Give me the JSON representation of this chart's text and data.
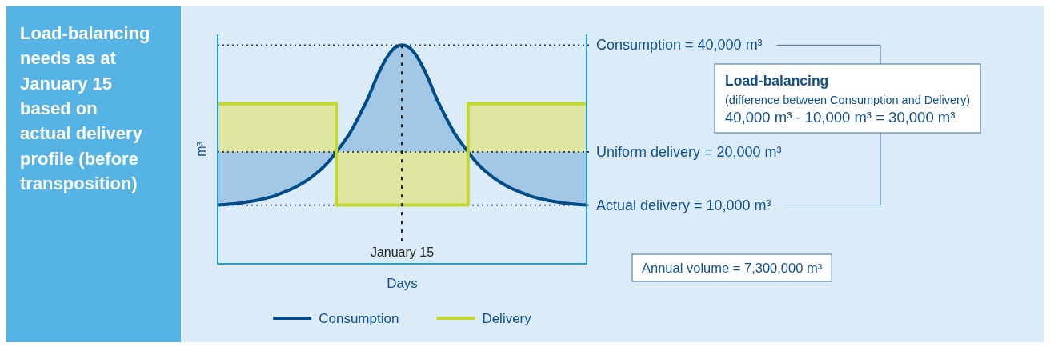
{
  "chart_data": {
    "type": "line",
    "title": "Load-balancing needs as at January 15 based on actual delivery profile (before transposition)",
    "xlabel": "Days",
    "legend": "bottom",
    "grid": "y",
    "ylim": [
      -1000,
      42000
    ],
    "yticks": [
      {
        "value": 40000,
        "label": "Consumption = 40,000 m³"
      },
      {
        "value": 20000,
        "label": "Uniform delivery = 20,000 m³"
      },
      {
        "value": 10000,
        "label": "Actual delivery = 10,000 m³"
      }
    ],
    "categories": [
      null,
      null,
      null,
      null,
      null,
      null,
      null,
      null,
      null,
      null,
      null,
      null,
      null,
      null,
      null,
      null,
      null,
      null,
      null,
      null,
      null,
      null,
      null,
      null,
      null,
      null,
      null,
      null,
      null,
      null,
      null,
      null,
      null,
      null,
      null,
      null,
      null,
      null,
      null,
      null,
      null,
      null,
      null,
      null,
      null,
      null,
      null,
      null,
      null,
      null,
      null,
      null,
      null,
      null,
      null,
      null,
      null
    ],
    "series": [
      {
        "name": "Consumption",
        "type": "line",
        "color": "#004c89",
        "values": [
          10000,
          10100,
          10200,
          10300,
          10500,
          10700,
          10900,
          11200,
          11500,
          11900,
          12400,
          12900,
          13500,
          14200,
          15000,
          16000,
          17100,
          18400,
          20000,
          21600,
          23400,
          25600,
          28000,
          30600,
          33600,
          36200,
          38300,
          39600,
          40000,
          39600,
          38300,
          36200,
          33600,
          30600,
          28000,
          25600,
          23400,
          21600,
          20000,
          18400,
          17100,
          16000,
          15000,
          14200,
          13500,
          12900,
          12400,
          11900,
          11500,
          11200,
          10900,
          10700,
          10500,
          10300,
          10200,
          10100,
          10000
        ],
        "lower": [
          10000,
          10100,
          10200,
          10300,
          10500,
          10700,
          10900,
          11200,
          11500,
          11900,
          12400,
          12900,
          13500,
          14200,
          15000,
          16000,
          17100,
          18400,
          20000,
          20000,
          20000,
          20000,
          20000,
          20000,
          20000,
          20000,
          20000,
          20000,
          20000,
          20000,
          20000,
          20000,
          20000,
          20000,
          20000,
          20000,
          20000,
          20000,
          20000,
          18400,
          17100,
          16000,
          15000,
          14200,
          13500,
          12900,
          12400,
          11900,
          11500,
          11200,
          10900,
          10700,
          10500,
          10300,
          10200,
          10100,
          10000
        ],
        "upper": [
          20000,
          20000,
          20000,
          20000,
          20000,
          20000,
          20000,
          20000,
          20000,
          20000,
          20000,
          20000,
          20000,
          20000,
          20000,
          20000,
          20000,
          20000,
          20000,
          21600,
          23400,
          25600,
          28000,
          30600,
          33600,
          36200,
          38300,
          39600,
          40000,
          39600,
          38300,
          36200,
          33600,
          30600,
          28000,
          25600,
          23400,
          21600,
          20000,
          20000,
          20000,
          20000,
          20000,
          20000,
          20000,
          20000,
          20000,
          20000,
          20000,
          20000,
          20000,
          20000,
          20000,
          20000,
          20000,
          20000,
          20000
        ]
      },
      {
        "name": "Delivery",
        "type": "step",
        "color": "#c3d82e",
        "values": [
          29000,
          29000,
          29000,
          29000,
          29000,
          29000,
          29000,
          29000,
          29000,
          29000,
          29000,
          29000,
          29000,
          29000,
          29000,
          29000,
          29000,
          29000,
          10000,
          10000,
          10000,
          10000,
          10000,
          10000,
          10000,
          10000,
          10000,
          10000,
          10000,
          10000,
          10000,
          10000,
          10000,
          10000,
          10000,
          10000,
          10000,
          10000,
          29000,
          29000,
          29000,
          29000,
          29000,
          29000,
          29000,
          29000,
          29000,
          29000,
          29000,
          29000,
          29000,
          29000,
          29000,
          29000,
          29000,
          29000,
          29000
        ],
        "lower": [
          20000,
          20000,
          20000,
          20000,
          20000,
          20000,
          20000,
          20000,
          20000,
          20000,
          20000,
          20000,
          20000,
          20000,
          20000,
          20000,
          20000,
          20000,
          10000,
          10000,
          10000,
          10000,
          10000,
          10000,
          10000,
          10000,
          10000,
          10000,
          10000,
          10000,
          10000,
          10000,
          10000,
          10000,
          10000,
          10000,
          10000,
          10000,
          20000,
          20000,
          20000,
          20000,
          20000,
          20000,
          20000,
          20000,
          20000,
          20000,
          20000,
          20000,
          20000,
          20000,
          20000,
          20000,
          20000,
          20000,
          20000
        ],
        "upper": [
          29000,
          29000,
          29000,
          29000,
          29000,
          29000,
          29000,
          29000,
          29000,
          29000,
          29000,
          29000,
          29000,
          29000,
          29000,
          29000,
          29000,
          29000,
          20000,
          20000,
          20000,
          20000,
          20000,
          20000,
          20000,
          20000,
          20000,
          20000,
          20000,
          20000,
          20000,
          20000,
          20000,
          20000,
          20000,
          20000,
          20000,
          20000,
          29000,
          29000,
          29000,
          29000,
          29000,
          29000,
          29000,
          29000,
          29000,
          29000,
          29000,
          29000,
          29000,
          29000,
          29000,
          29000,
          29000,
          29000,
          29000
        ]
      }
    ],
    "annotations": [
      "Load-balancing\n(difference between Consumption and Delivery)\n40,000 m³ - 10,000 m³ = 30,000 m³",
      "Annual volume = 7,300,000 m³",
      "January 15",
      "m³"
    ]
  }
}
